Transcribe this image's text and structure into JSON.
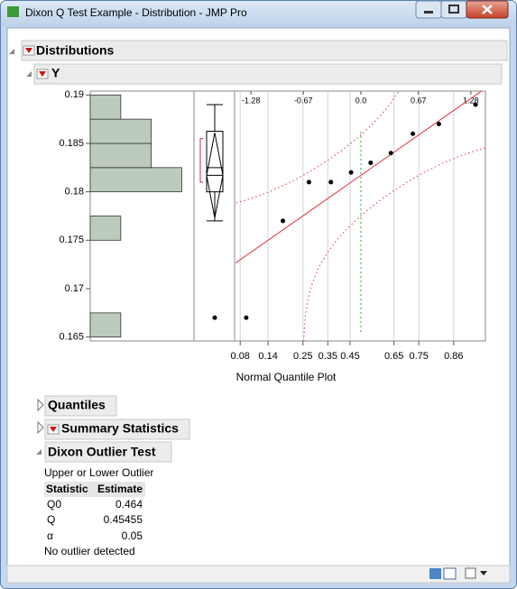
{
  "window": {
    "title": "Dixon Q Test Example - Distribution - JMP Pro"
  },
  "outline": {
    "title": "Distributions",
    "variable": "Y"
  },
  "chart_data": {
    "type": "histogram",
    "orientation": "horizontal",
    "bins": [
      0.165,
      0.1675,
      0.17,
      0.1725,
      0.175,
      0.1775,
      0.18,
      0.1825,
      0.185,
      0.1875,
      0.19
    ],
    "counts": [
      1,
      0,
      0,
      0,
      1,
      0,
      3,
      2,
      2,
      1
    ],
    "color": "#bccbbb",
    "ylim": [
      0.1646,
      0.1904
    ],
    "yticks": [
      0.165,
      0.17,
      0.175,
      0.18,
      0.185,
      0.19
    ],
    "xlim": [
      0,
      3.4
    ],
    "box_plot": {
      "whisker_low": 0.177,
      "q1": 0.18,
      "median": 0.1825,
      "q3": 0.18625,
      "whisker_high": 0.189,
      "mean": 0.1817,
      "mean_ci": [
        0.1773,
        0.1861
      ],
      "shortest_half": [
        0.181,
        0.1855
      ],
      "outliers": [
        0.167
      ]
    },
    "quantile_plot": {
      "title": "Normal Quantile Plot",
      "x": [
        -1.335,
        -0.908,
        -0.605,
        -0.349,
        -0.114,
        0.114,
        0.349,
        0.605,
        0.908,
        1.335
      ],
      "y": [
        0.167,
        0.177,
        0.181,
        0.181,
        0.182,
        0.183,
        0.184,
        0.186,
        0.187,
        0.189
      ],
      "xlim": [
        -1.46,
        1.45
      ],
      "xticks_top": [
        -1.28,
        -0.67,
        {
          "value": 0,
          "label": "0.0"
        },
        0.67,
        1.28
      ],
      "xticks": [
        0.08,
        0.14,
        0.25,
        0.35,
        0.45,
        0.65,
        0.75,
        0.86
      ],
      "fit": {
        "mean": 0.1817,
        "sd": 0.0062
      },
      "confidence_band": 0.25
    }
  },
  "sections": [
    {
      "title": "Quantiles"
    },
    {
      "title": "Summary Statistics"
    },
    {
      "title": "Dixon Outlier Test"
    }
  ],
  "dixon": {
    "subtitle": "Upper or Lower Outlier",
    "columns": [
      "Statistic",
      "Estimate"
    ],
    "rows": [
      [
        "Q0",
        0.464
      ],
      [
        "Q",
        0.45455
      ],
      [
        "α",
        0.05
      ]
    ],
    "conclusion": "No outlier detected"
  }
}
